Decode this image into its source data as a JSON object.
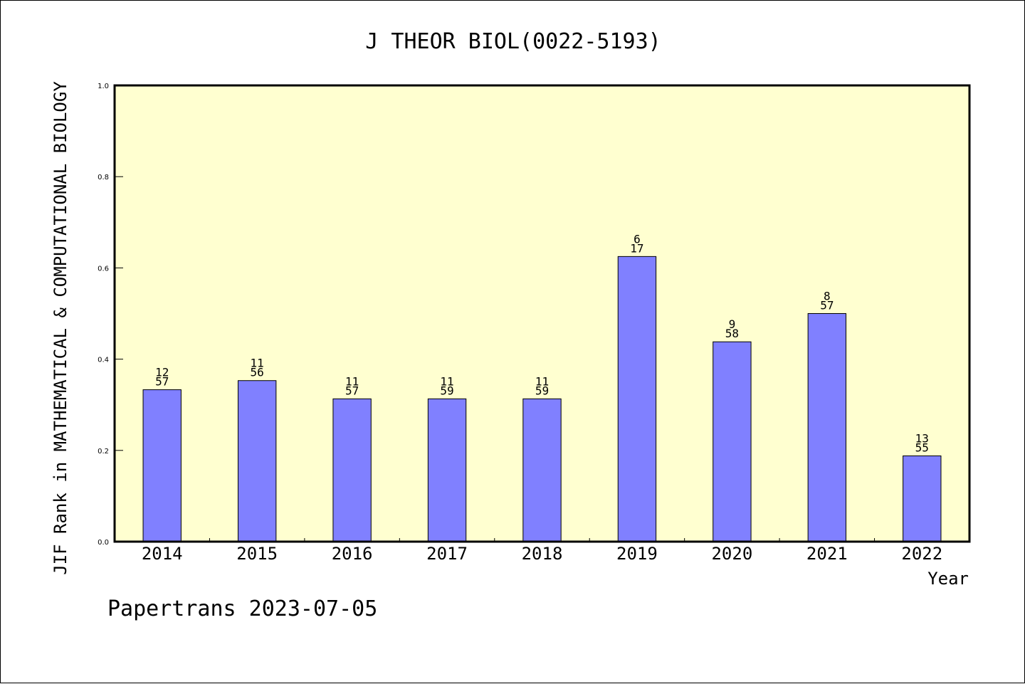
{
  "chart_data": {
    "type": "bar",
    "title": "J THEOR BIOL(0022-5193)",
    "xlabel": "Year",
    "ylabel": "JIF Rank in MATHEMATICAL & COMPUTATIONAL BIOLOGY",
    "ylim": [
      0,
      1.0
    ],
    "yticks": [
      "0.0",
      "0.2",
      "0.4",
      "0.6",
      "0.8",
      "1.0"
    ],
    "categories": [
      "2014",
      "2015",
      "2016",
      "2017",
      "2018",
      "2019",
      "2020",
      "2021",
      "2022"
    ],
    "values": [
      0.333,
      0.353,
      0.313,
      0.313,
      0.313,
      0.625,
      0.438,
      0.5,
      0.188
    ],
    "rank_labels": [
      {
        "rank": "12",
        "total": "57"
      },
      {
        "rank": "11",
        "total": "56"
      },
      {
        "rank": "11",
        "total": "57"
      },
      {
        "rank": "11",
        "total": "59"
      },
      {
        "rank": "11",
        "total": "59"
      },
      {
        "rank": "6",
        "total": "17"
      },
      {
        "rank": "9",
        "total": "58"
      },
      {
        "rank": "8",
        "total": "57"
      },
      {
        "rank": "13",
        "total": "55"
      }
    ],
    "grid": false,
    "colors": {
      "plot_background": "#ffffd0",
      "bar_fill": "#8080ff",
      "bar_stroke": "#000000"
    }
  },
  "footer": {
    "text": "Papertrans 2023-07-05"
  }
}
